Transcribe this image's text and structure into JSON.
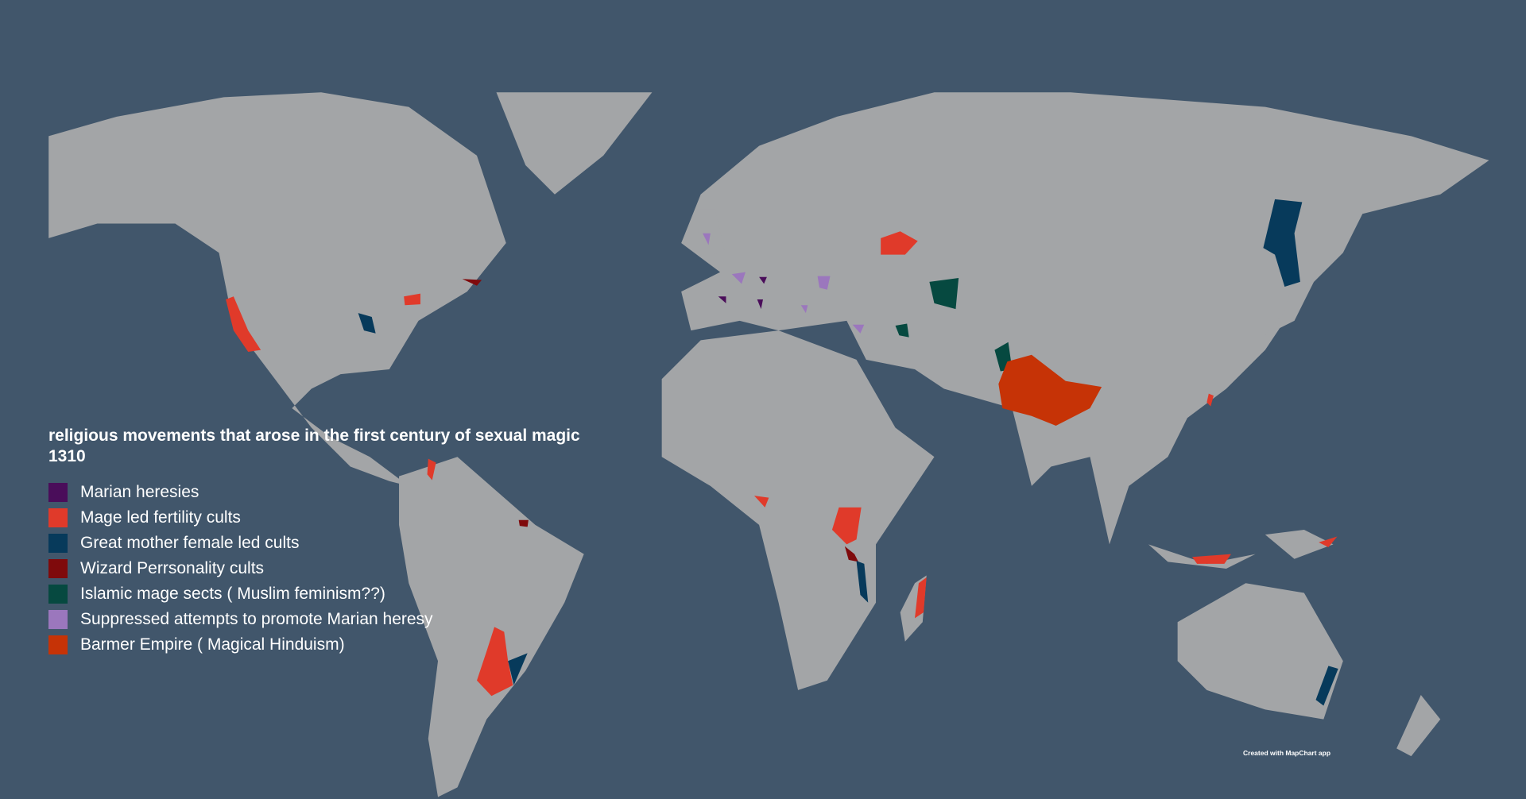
{
  "map": {
    "title": "religious movements that arose in the first century of sexual magic 1310",
    "background_color": "#41566b",
    "land_color": "#a3a5a7",
    "legend": [
      {
        "label": "Marian heresies",
        "color": "#4a0d5a"
      },
      {
        "label": "Mage led fertility cults",
        "color": "#e03a2a"
      },
      {
        "label": "Great mother female led cults",
        "color": "#073a5b"
      },
      {
        "label": "Wizard Perrsonality cults",
        "color": "#7f0a0c"
      },
      {
        "label": "Islamic mage sects ( Muslim feminism??)",
        "color": "#064940"
      },
      {
        "label": "Suppressed attempts to promote Marian heresy",
        "color": "#9b77bd"
      },
      {
        "label": "Barmer Empire ( Magical Hinduism)",
        "color": "#c63306"
      }
    ],
    "credit": "Created with MapChart app"
  }
}
